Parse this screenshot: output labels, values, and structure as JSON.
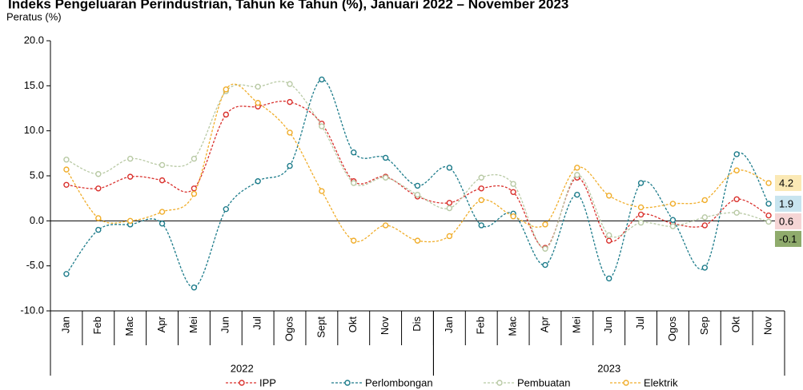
{
  "chart_data": {
    "type": "line",
    "title": "Indeks Pengeluaran Perindustrian, Tahun ke Tahun (%), Januari 2022 – November 2023",
    "y_axis_label": "Peratus (%)",
    "categories": [
      "Jan",
      "Feb",
      "Mac",
      "Apr",
      "Mei",
      "Jun",
      "Jul",
      "Ogos",
      "Sept",
      "Okt",
      "Nov",
      "Dis",
      "Jan",
      "Feb",
      "Mac",
      "Apr",
      "Mei",
      "Jun",
      "Jul",
      "Ogos",
      "Sep",
      "Okt",
      "Nov"
    ],
    "groups": [
      {
        "label": "2022",
        "count": 12
      },
      {
        "label": "2023",
        "count": 11
      }
    ],
    "ylim": [
      -10,
      20
    ],
    "yticks": [
      {
        "value": -10,
        "label": "-10.0"
      },
      {
        "value": -5,
        "label": "-5.0"
      },
      {
        "value": 0,
        "label": "0.0"
      },
      {
        "value": 5,
        "label": "5.0"
      },
      {
        "value": 10,
        "label": "10.0"
      },
      {
        "value": 15,
        "label": "15.0"
      },
      {
        "value": 20,
        "label": "20.0"
      }
    ],
    "series": [
      {
        "name": "IPP",
        "color": "#d9302c",
        "label_color": "#f5d5d5",
        "values": [
          4.0,
          3.6,
          4.9,
          4.5,
          3.6,
          11.8,
          12.7,
          13.2,
          10.8,
          4.4,
          4.9,
          2.7,
          2.0,
          3.6,
          3.2,
          -3.0,
          4.8,
          -2.2,
          0.7,
          -0.3,
          -0.5,
          2.4,
          0.6
        ]
      },
      {
        "name": "Perlombongan",
        "color": "#1c7b8a",
        "label_color": "#c8e4ef",
        "values": [
          -5.9,
          -1.0,
          -0.4,
          -0.3,
          -7.4,
          1.3,
          4.4,
          6.1,
          15.7,
          7.6,
          7.0,
          3.9,
          5.9,
          -0.5,
          0.8,
          -4.9,
          2.9,
          -6.4,
          4.2,
          0.1,
          -5.2,
          7.4,
          1.9
        ]
      },
      {
        "name": "Pembuatan",
        "color": "#b8c9a4",
        "label_color": "#8fab6c",
        "values": [
          6.8,
          5.2,
          6.9,
          6.2,
          6.9,
          14.4,
          14.9,
          15.2,
          10.5,
          4.2,
          4.8,
          2.9,
          1.4,
          4.8,
          4.1,
          -3.1,
          5.1,
          -1.6,
          -0.2,
          -0.6,
          0.4,
          0.9,
          -0.1
        ]
      },
      {
        "name": "Elektrik",
        "color": "#f0ad2a",
        "label_color": "#fbe9b5",
        "values": [
          5.7,
          0.3,
          0.0,
          1.0,
          3.0,
          14.6,
          13.1,
          9.8,
          3.3,
          -2.2,
          -0.5,
          -2.2,
          -1.7,
          2.3,
          0.5,
          -0.4,
          5.9,
          2.8,
          1.5,
          1.9,
          2.3,
          5.6,
          4.2
        ]
      }
    ]
  }
}
